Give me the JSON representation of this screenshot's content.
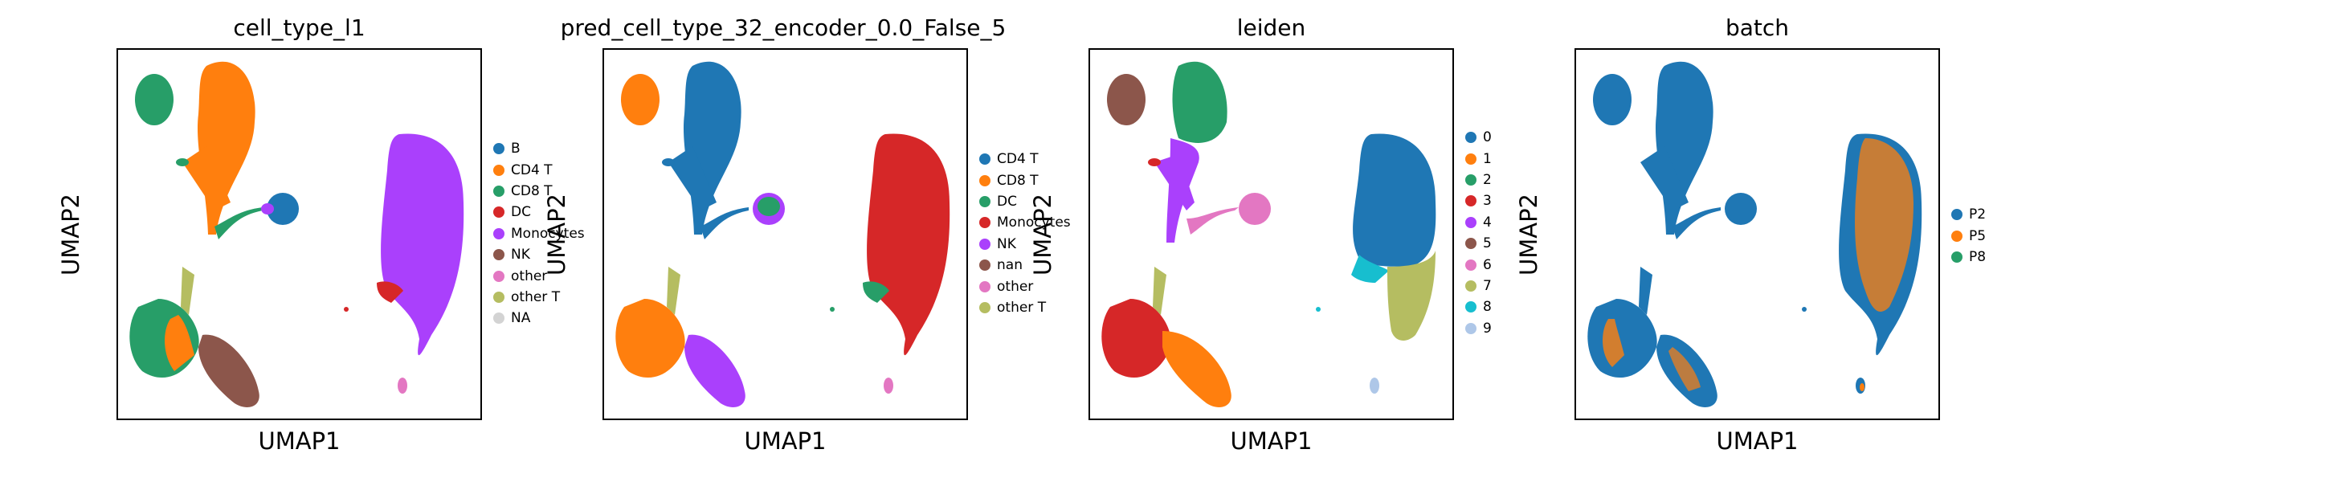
{
  "figure": {
    "panels": [
      {
        "title": "cell_type_l1",
        "xlabel": "UMAP1",
        "ylabel": "UMAP2",
        "legend": [
          {
            "label": "B",
            "color": "#1f77b4"
          },
          {
            "label": "CD4 T",
            "color": "#ff7f0e"
          },
          {
            "label": "CD8 T",
            "color": "#279e68"
          },
          {
            "label": "DC",
            "color": "#d62728"
          },
          {
            "label": "Monocytes",
            "color": "#aa40fc"
          },
          {
            "label": "NK",
            "color": "#8c564b"
          },
          {
            "label": "other",
            "color": "#e377c2"
          },
          {
            "label": "other T",
            "color": "#b5bd61"
          },
          {
            "label": "NA",
            "color": "#d3d3d3"
          }
        ]
      },
      {
        "title": "pred_cell_type_32_encoder_0.0_False_5",
        "xlabel": "UMAP1",
        "ylabel": "UMAP2",
        "legend": [
          {
            "label": "CD4 T",
            "color": "#1f77b4"
          },
          {
            "label": "CD8 T",
            "color": "#ff7f0e"
          },
          {
            "label": "DC",
            "color": "#279e68"
          },
          {
            "label": "Monocytes",
            "color": "#d62728"
          },
          {
            "label": "NK",
            "color": "#aa40fc"
          },
          {
            "label": "nan",
            "color": "#8c564b"
          },
          {
            "label": "other",
            "color": "#e377c2"
          },
          {
            "label": "other T",
            "color": "#b5bd61"
          }
        ]
      },
      {
        "title": "leiden",
        "xlabel": "UMAP1",
        "ylabel": "UMAP2",
        "legend": [
          {
            "label": "0",
            "color": "#1f77b4"
          },
          {
            "label": "1",
            "color": "#ff7f0e"
          },
          {
            "label": "2",
            "color": "#279e68"
          },
          {
            "label": "3",
            "color": "#d62728"
          },
          {
            "label": "4",
            "color": "#aa40fc"
          },
          {
            "label": "5",
            "color": "#8c564b"
          },
          {
            "label": "6",
            "color": "#e377c2"
          },
          {
            "label": "7",
            "color": "#b5bd61"
          },
          {
            "label": "8",
            "color": "#17becf"
          },
          {
            "label": "9",
            "color": "#aec7e8"
          }
        ]
      },
      {
        "title": "batch",
        "xlabel": "UMAP1",
        "ylabel": "UMAP2",
        "legend": [
          {
            "label": "P2",
            "color": "#1f77b4"
          },
          {
            "label": "P5",
            "color": "#ff7f0e"
          },
          {
            "label": "P8",
            "color": "#279e68"
          }
        ]
      }
    ]
  },
  "chart_data": [
    {
      "type": "scatter",
      "title": "cell_type_l1",
      "xlabel": "UMAP1",
      "ylabel": "UMAP2",
      "grid": false,
      "legend_position": "right",
      "axis_ticks": false,
      "series": [
        {
          "name": "B"
        },
        {
          "name": "CD4 T"
        },
        {
          "name": "CD8 T"
        },
        {
          "name": "DC"
        },
        {
          "name": "Monocytes"
        },
        {
          "name": "NK"
        },
        {
          "name": "other"
        },
        {
          "name": "other T"
        },
        {
          "name": "NA"
        }
      ]
    },
    {
      "type": "scatter",
      "title": "pred_cell_type_32_encoder_0.0_False_5",
      "xlabel": "UMAP1",
      "ylabel": "UMAP2",
      "grid": false,
      "legend_position": "right",
      "axis_ticks": false,
      "series": [
        {
          "name": "CD4 T"
        },
        {
          "name": "CD8 T"
        },
        {
          "name": "DC"
        },
        {
          "name": "Monocytes"
        },
        {
          "name": "NK"
        },
        {
          "name": "nan"
        },
        {
          "name": "other"
        },
        {
          "name": "other T"
        }
      ]
    },
    {
      "type": "scatter",
      "title": "leiden",
      "xlabel": "UMAP1",
      "ylabel": "UMAP2",
      "grid": false,
      "legend_position": "right",
      "axis_ticks": false,
      "series": [
        {
          "name": "0"
        },
        {
          "name": "1"
        },
        {
          "name": "2"
        },
        {
          "name": "3"
        },
        {
          "name": "4"
        },
        {
          "name": "5"
        },
        {
          "name": "6"
        },
        {
          "name": "7"
        },
        {
          "name": "8"
        },
        {
          "name": "9"
        }
      ]
    },
    {
      "type": "scatter",
      "title": "batch",
      "xlabel": "UMAP1",
      "ylabel": "UMAP2",
      "grid": false,
      "legend_position": "right",
      "axis_ticks": false,
      "series": [
        {
          "name": "P2"
        },
        {
          "name": "P5"
        },
        {
          "name": "P8"
        }
      ]
    }
  ]
}
